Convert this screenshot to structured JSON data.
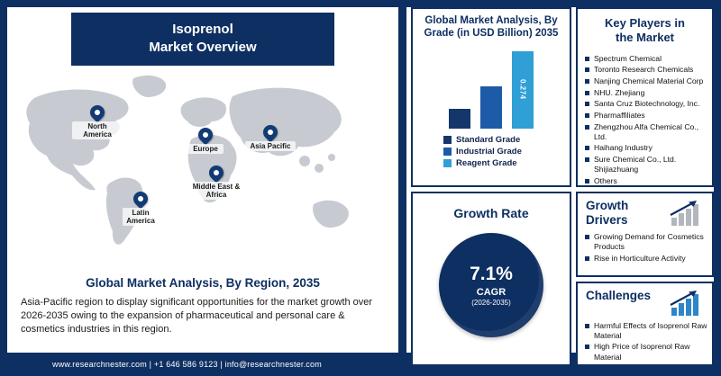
{
  "colors": {
    "navy": "#0e2f62",
    "medium_blue": "#1d5aa8",
    "light_blue": "#2f9fd6",
    "map_gray": "#c7cbd1"
  },
  "header": {
    "title_line1": "Isoprenol",
    "title_line2": "Market Overview"
  },
  "map": {
    "regions": [
      {
        "name": "North America"
      },
      {
        "name": "Europe"
      },
      {
        "name": "Asia Pacific"
      },
      {
        "name": "Middle East & Africa"
      },
      {
        "name": "Latin America"
      }
    ]
  },
  "region_section": {
    "heading": "Global Market Analysis, By Region, 2035",
    "description": "Asia-Pacific region to display significant opportunities for the market growth over 2026-2035 owing to the expansion of pharmaceutical and personal care & cosmetics industries in this region."
  },
  "grade_panel": {
    "title": "Global Market Analysis, By Grade (in USD Billion) 2035",
    "bar_label": "0.274",
    "legend": [
      {
        "label": "Standard Grade",
        "color": "#14366b"
      },
      {
        "label": "Industrial Grade",
        "color": "#1d5aa8"
      },
      {
        "label": "Reagent Grade",
        "color": "#2f9fd6"
      }
    ]
  },
  "chart_data": {
    "type": "bar",
    "title": "Global Market Analysis, By Grade (in USD Billion) 2035",
    "categories": [
      "Standard Grade",
      "Industrial Grade",
      "Reagent Grade"
    ],
    "values": [
      0.07,
      0.15,
      0.274
    ],
    "value_labels": [
      "",
      "",
      "0.274"
    ],
    "ylabel": "USD Billion",
    "ylim": [
      0,
      0.3
    ],
    "grid": false,
    "legend_position": "bottom-left"
  },
  "growth_rate": {
    "title": "Growth Rate",
    "value": "7.1%",
    "label": "CAGR",
    "period": "(2026-2035)"
  },
  "key_players": {
    "title": "Key Players in the Market",
    "items": [
      "Spectrum Chemical",
      "Toronto Research Chemicals",
      "Nanjing Chemical Material Corp",
      "NHU. Zhejiang",
      "Santa Cruz Biotechnology, Inc.",
      "Pharmaffiliates",
      "Zhengzhou Alfa Chemical Co., Ltd.",
      "Haihang Industry",
      "Sure Chemical Co., Ltd. Shijiazhuang",
      "Others"
    ]
  },
  "growth_drivers": {
    "title": "Growth Drivers",
    "items": [
      "Growing Demand for Cosmetics Products",
      "Rise in Horticulture Activity"
    ]
  },
  "challenges": {
    "title": "Challenges",
    "items": [
      "Harmful Effects of Isoprenol Raw Material",
      "High Price of Isoprenol Raw Material"
    ]
  },
  "footer": {
    "text": "www.researchnester.com | +1 646 586 9123 | info@researchnester.com"
  }
}
